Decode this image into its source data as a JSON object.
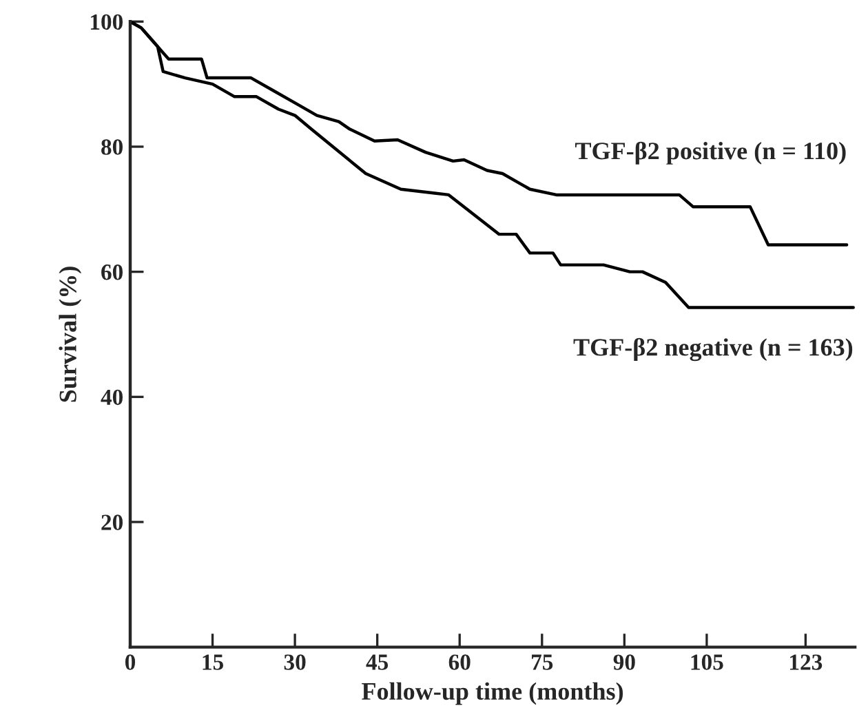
{
  "chart_data": {
    "type": "line",
    "xlabel": "Follow-up time (months)",
    "ylabel": "Survival (%)",
    "xlim": [
      0,
      132
    ],
    "xticks": [
      0,
      15,
      30,
      45,
      60,
      75,
      90,
      105,
      123
    ],
    "ylim": [
      0,
      100
    ],
    "yticks": [
      20,
      40,
      60,
      80,
      100
    ],
    "series": [
      {
        "name": "TGF-β2 positive (n = 110)",
        "color": "#000000",
        "x": [
          0,
          2,
          4,
          6,
          7,
          13,
          14,
          22,
          26,
          30,
          34,
          38,
          40,
          44.5,
          48.7,
          53.8,
          58.8,
          60.8,
          65,
          67.8,
          72.8,
          77.6,
          100,
          102.5,
          112.9,
          116.2,
          130.5
        ],
        "values": [
          100,
          99,
          97,
          95,
          94,
          94,
          91,
          91,
          89,
          87,
          85,
          84,
          82.8,
          80.9,
          81.1,
          79.1,
          77.7,
          77.9,
          76.2,
          75.7,
          73.2,
          72.3,
          72.3,
          70.4,
          70.4,
          64.3,
          64.3
        ]
      },
      {
        "name": "TGF-β2 negative (n = 163)",
        "color": "#000000",
        "x": [
          0,
          2,
          4,
          5,
          6,
          10,
          15,
          19,
          23,
          27,
          30,
          33,
          42.9,
          49.3,
          55.2,
          58,
          67.2,
          70.3,
          72.8,
          77,
          78.4,
          86.2,
          91,
          93.3,
          97.5,
          101.7,
          131.7
        ],
        "values": [
          100,
          99,
          97,
          96,
          92,
          91,
          90,
          88,
          88,
          86,
          85,
          82.8,
          75.7,
          73.2,
          72.6,
          72.3,
          66,
          66,
          63,
          63,
          61.1,
          61.1,
          60,
          60,
          58.3,
          54.3,
          54.3
        ]
      }
    ]
  }
}
